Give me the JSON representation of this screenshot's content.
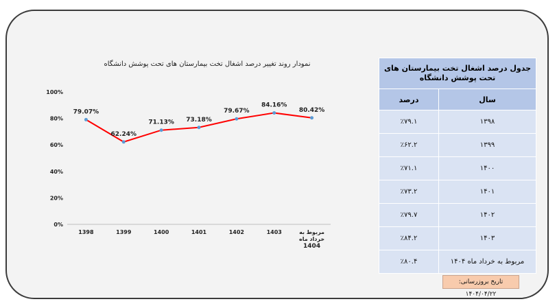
{
  "chart_data": {
    "type": "line",
    "title": "نمودار روند تغییر درصد اشغال تخت بیمارستان های تحت پوشش دانشگاه",
    "categories": [
      "1398",
      "1399",
      "1400",
      "1401",
      "1402",
      "1403",
      "مربوط به خرداد ماه 1404"
    ],
    "category_lines": [
      [
        "1398"
      ],
      [
        "1399"
      ],
      [
        "1400"
      ],
      [
        "1401"
      ],
      [
        "1402"
      ],
      [
        "1403"
      ],
      [
        "مربوط به",
        "خرداد ماه",
        "1404"
      ]
    ],
    "values": [
      79.07,
      62.24,
      71.13,
      73.18,
      79.67,
      84.16,
      80.42
    ],
    "data_labels": [
      "79.07%",
      "62.24%",
      "71.13%",
      "73.18%",
      "79.67%",
      "84.16%",
      "80.42%"
    ],
    "y_ticks": [
      0,
      20,
      40,
      60,
      80,
      100
    ],
    "y_tick_labels": [
      "0%",
      "20%",
      "40%",
      "60%",
      "80%",
      "100%"
    ],
    "ylim": [
      0,
      100
    ],
    "grid": false,
    "line_color": "#ff0000",
    "marker_color": "#5b9bd5"
  },
  "table": {
    "caption": "جدول درصد اشغال تخت بیمارستان های تحت پوشش دانشگاه",
    "header_year": "سال",
    "header_percent": "درصد",
    "rows": [
      {
        "year": "۱۳۹۸",
        "percent": "٪۷۹.۱"
      },
      {
        "year": "۱۳۹۹",
        "percent": "٪۶۲.۲"
      },
      {
        "year": "۱۴۰۰",
        "percent": "٪۷۱.۱"
      },
      {
        "year": "۱۴۰۱",
        "percent": "٪۷۳.۲"
      },
      {
        "year": "۱۴۰۲",
        "percent": "٪۷۹.۷"
      },
      {
        "year": "۱۴۰۳",
        "percent": "٪۸۴.۲"
      },
      {
        "year": "مربوط به خرداد ماه ۱۴۰۴",
        "percent": "٪۸۰.۴"
      }
    ]
  },
  "update_note": "تاریخ بروزرسانی: ۱۴۰۴/۰۴/۲۲"
}
